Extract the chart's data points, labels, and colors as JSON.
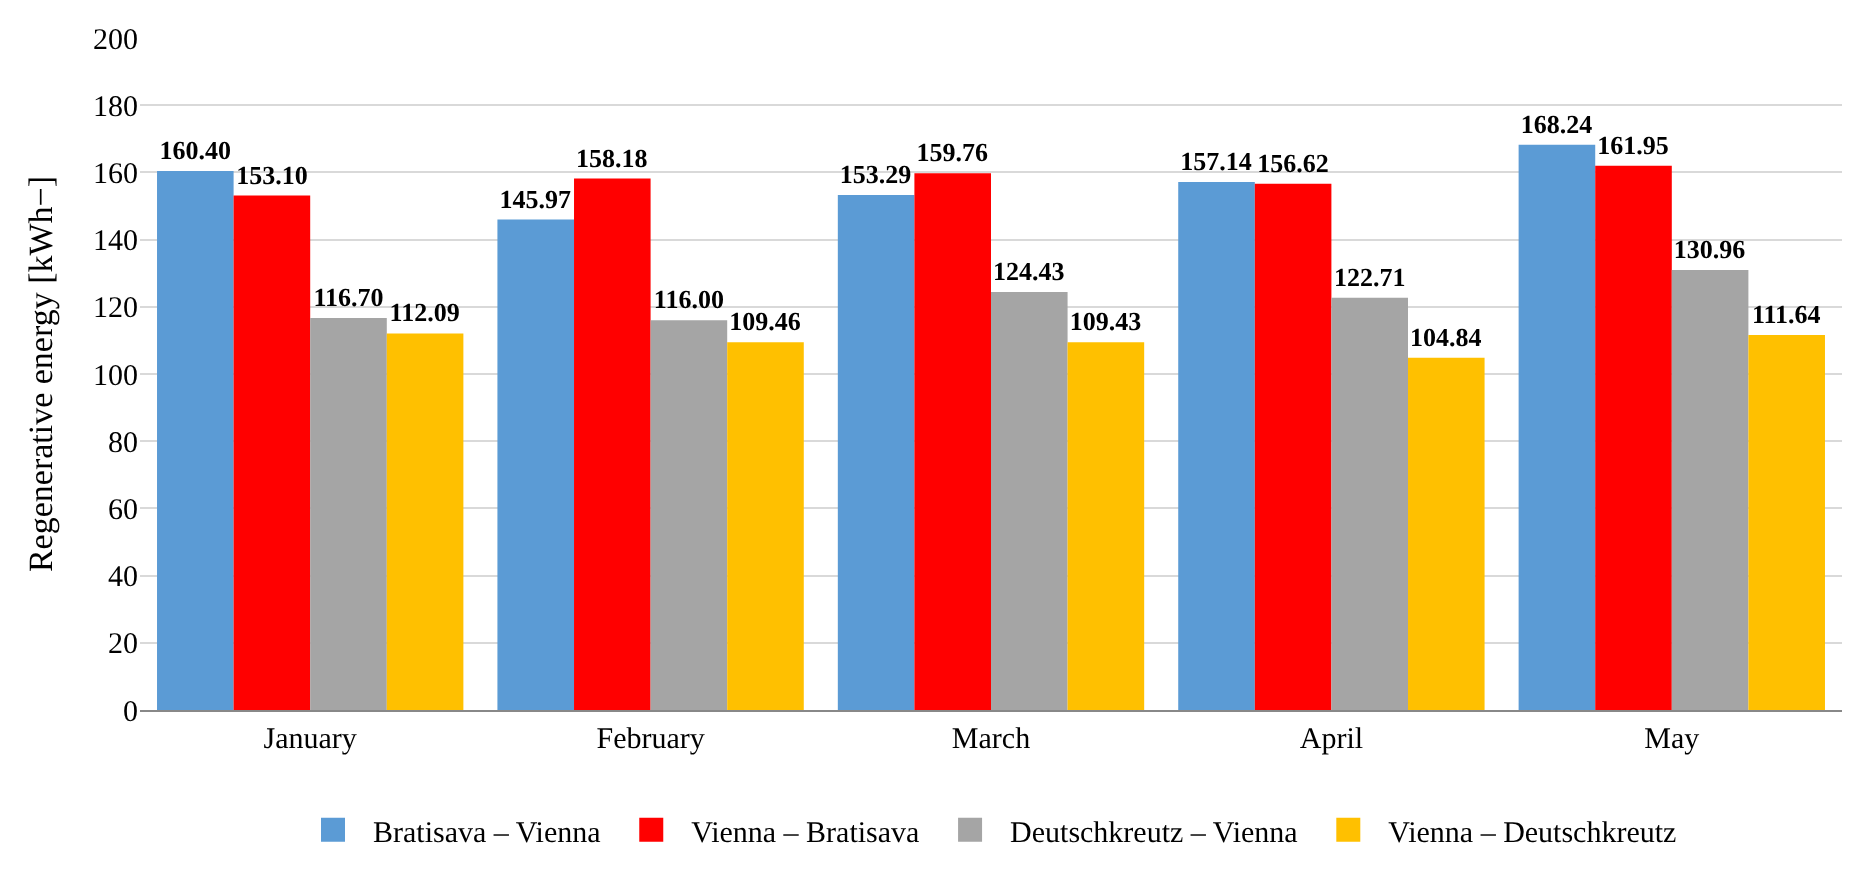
{
  "chart_data": {
    "type": "bar",
    "ylabel": "Regenerative energy [kWh−]",
    "categories": [
      "January",
      "February",
      "March",
      "April",
      "May"
    ],
    "series": [
      {
        "name": "Bratisava – Vienna",
        "color": "#5b9bd5",
        "values": [
          160.4,
          145.97,
          153.29,
          157.14,
          168.24
        ],
        "value_labels": [
          "160.40",
          "145.97",
          "153.29",
          "157.14",
          "168.24"
        ]
      },
      {
        "name": "Vienna – Bratisava",
        "color": "#ff0000",
        "values": [
          153.1,
          158.18,
          159.76,
          156.62,
          161.95
        ],
        "value_labels": [
          "153.10",
          "158.18",
          "159.76",
          "156.62",
          "161.95"
        ]
      },
      {
        "name": "Deutschkreutz – Vienna",
        "color": "#a5a5a5",
        "values": [
          116.7,
          116.0,
          124.43,
          122.71,
          130.96
        ],
        "value_labels": [
          "116.70",
          "116.00",
          "124.43",
          "122.71",
          "130.96"
        ]
      },
      {
        "name": "Vienna – Deutschkreutz",
        "color": "#ffc000",
        "values": [
          112.09,
          109.46,
          109.43,
          104.84,
          111.64
        ],
        "value_labels": [
          "112.09",
          "109.46",
          "109.43",
          "104.84",
          "111.64"
        ]
      }
    ],
    "ylim": [
      0,
      200
    ],
    "yticks": [
      0,
      20,
      40,
      60,
      80,
      100,
      120,
      140,
      160,
      180,
      200
    ],
    "grid": "y",
    "legend": "bottom"
  }
}
